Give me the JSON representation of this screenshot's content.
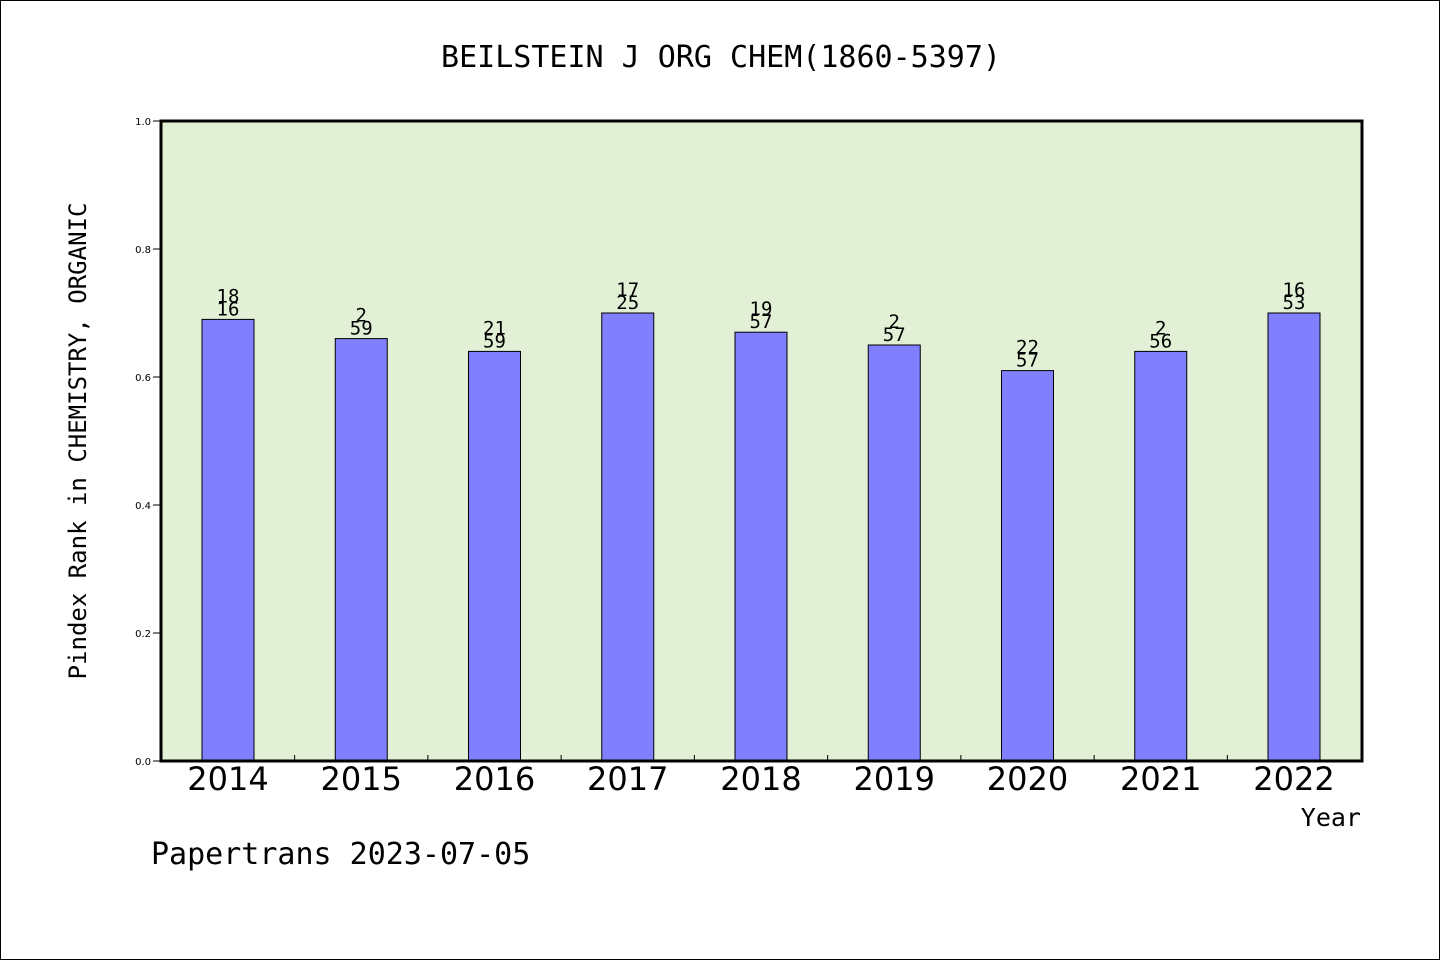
{
  "chart_data": {
    "type": "bar",
    "title": "BEILSTEIN J ORG CHEM(1860-5397)",
    "ylabel": "Pindex Rank in CHEMISTRY, ORGANIC",
    "xlabel": "Year",
    "ylim": [
      0,
      1.0
    ],
    "yticks": [
      0.0,
      0.2,
      0.4,
      0.6,
      0.8,
      1.0
    ],
    "ytick_labels": [
      "0.0",
      "0.2",
      "0.4",
      "0.6",
      "0.8",
      "1.0"
    ],
    "categories": [
      "2014",
      "2015",
      "2016",
      "2017",
      "2018",
      "2019",
      "2020",
      "2021",
      "2022"
    ],
    "values": [
      0.69,
      0.66,
      0.64,
      0.7,
      0.67,
      0.65,
      0.61,
      0.64,
      0.7
    ],
    "bar_labels": [
      [
        "18",
        "16"
      ],
      [
        "2",
        "59"
      ],
      [
        "21",
        "59"
      ],
      [
        "17",
        "25"
      ],
      [
        "19",
        "57"
      ],
      [
        "2",
        "57"
      ],
      [
        "22",
        "57"
      ],
      [
        "2",
        "56"
      ],
      [
        "16",
        "53"
      ]
    ],
    "footer": "Papertrans 2023-07-05",
    "grid": false,
    "colors": {
      "plot_background": "#e2f0d6",
      "bar_fill": "#8080ff",
      "bar_stroke": "#000000"
    }
  }
}
